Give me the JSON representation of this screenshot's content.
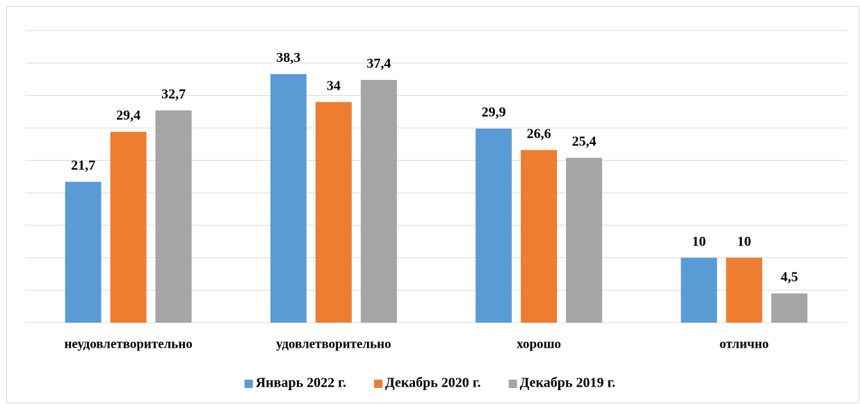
{
  "chart_data": {
    "type": "bar",
    "categories": [
      "неудовлетворительно",
      "удовлетворительно",
      "хорошо",
      "отлично"
    ],
    "series": [
      {
        "name": "Январь 2022 г.",
        "color": "#5b9bd5",
        "values": [
          21.7,
          38.3,
          29.9,
          10
        ],
        "value_labels": [
          "21,7",
          "38,3",
          "29,9",
          "10"
        ]
      },
      {
        "name": "Декабрь 2020 г.",
        "color": "#ed7d31",
        "values": [
          29.4,
          34,
          26.6,
          10
        ],
        "value_labels": [
          "29,4",
          "34",
          "26,6",
          "10"
        ]
      },
      {
        "name": "Декабрь 2019 г.",
        "color": "#a5a5a5",
        "values": [
          32.7,
          37.4,
          25.4,
          4.5
        ],
        "value_labels": [
          "32,7",
          "37,4",
          "25,4",
          "4,5"
        ]
      }
    ],
    "ylim": [
      0,
      45
    ],
    "yticks": [
      0,
      5,
      10,
      15,
      20,
      25,
      30,
      35,
      40,
      45
    ],
    "grid": true,
    "legend": "bottom"
  }
}
